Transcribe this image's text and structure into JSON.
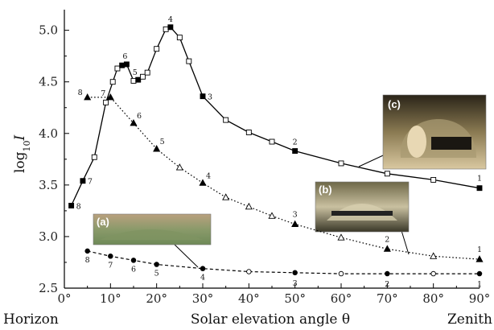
{
  "chart_data": {
    "type": "line",
    "xlabel": "Solar elevation angle θ",
    "ylabel_main": "log",
    "ylabel_sub": "10",
    "ylabel_var": "I",
    "xlim": [
      0,
      90
    ],
    "ylim": [
      2.5,
      5.2
    ],
    "x_ticks": [
      0,
      10,
      20,
      30,
      40,
      50,
      60,
      70,
      80,
      90
    ],
    "x_tick_labels": [
      "0°",
      "10°",
      "20°",
      "30°",
      "40°",
      "50°",
      "60°",
      "70°",
      "80°",
      "90°"
    ],
    "y_ticks": [
      2.5,
      3.0,
      3.5,
      4.0,
      4.5,
      5.0
    ],
    "y_tick_labels": [
      "2.5",
      "3.0",
      "3.5",
      "4.0",
      "4.5",
      "5.0"
    ],
    "x_end_labels": {
      "left": "Horizon",
      "right": "Zenith"
    },
    "grid": false,
    "series": [
      {
        "inset": "c",
        "line_style": "solid",
        "x": [
          1.5,
          4,
          6.5,
          9,
          10.5,
          11.5,
          12.5,
          13.5,
          15,
          16,
          17,
          18,
          20,
          22,
          23,
          25,
          27,
          30,
          35,
          40,
          45,
          50,
          60,
          70,
          80,
          90
        ],
        "y": [
          3.3,
          3.54,
          3.77,
          4.3,
          4.5,
          4.63,
          4.66,
          4.67,
          4.51,
          4.52,
          4.55,
          4.59,
          4.82,
          5.01,
          5.03,
          4.93,
          4.7,
          4.36,
          4.13,
          4.01,
          3.92,
          3.83,
          3.71,
          3.61,
          3.55,
          3.47
        ],
        "filled": [
          true,
          true,
          false,
          false,
          false,
          false,
          true,
          true,
          false,
          true,
          false,
          false,
          false,
          false,
          true,
          false,
          false,
          true,
          false,
          false,
          false,
          true,
          false,
          false,
          false,
          true
        ],
        "point_labels": [
          {
            "text": "8",
            "x": 1.5,
            "y": 3.3
          },
          {
            "text": "7",
            "x": 4,
            "y": 3.54
          },
          {
            "text": "6",
            "x": 13.5,
            "y": 4.67
          },
          {
            "text": "5",
            "x": 16,
            "y": 4.52
          },
          {
            "text": "4",
            "x": 23,
            "y": 5.03
          },
          {
            "text": "3",
            "x": 30,
            "y": 4.36
          },
          {
            "text": "2",
            "x": 50,
            "y": 3.83
          },
          {
            "text": "1",
            "x": 90,
            "y": 3.47
          }
        ]
      },
      {
        "inset": "b",
        "line_style": "dotted",
        "x": [
          5,
          10,
          15,
          20,
          25,
          30,
          35,
          40,
          45,
          50,
          60,
          70,
          80,
          90
        ],
        "y": [
          4.35,
          4.35,
          4.1,
          3.85,
          3.67,
          3.52,
          3.38,
          3.29,
          3.2,
          3.12,
          2.99,
          2.88,
          2.81,
          2.78
        ],
        "filled": [
          true,
          true,
          true,
          true,
          false,
          true,
          false,
          false,
          false,
          true,
          false,
          true,
          false,
          true
        ],
        "point_labels": [
          {
            "text": "8",
            "x": 5,
            "y": 4.35
          },
          {
            "text": "7",
            "x": 10,
            "y": 4.35
          },
          {
            "text": "6",
            "x": 15,
            "y": 4.1
          },
          {
            "text": "5",
            "x": 20,
            "y": 3.85
          },
          {
            "text": "4",
            "x": 30,
            "y": 3.52
          },
          {
            "text": "3",
            "x": 50,
            "y": 3.12
          },
          {
            "text": "2",
            "x": 70,
            "y": 2.88
          },
          {
            "text": "1",
            "x": 90,
            "y": 2.78
          }
        ]
      },
      {
        "inset": "a",
        "line_style": "dashed",
        "x": [
          5,
          10,
          15,
          20,
          30,
          40,
          50,
          60,
          70,
          80,
          90
        ],
        "y": [
          2.86,
          2.81,
          2.77,
          2.73,
          2.69,
          2.66,
          2.65,
          2.64,
          2.64,
          2.64,
          2.64
        ],
        "filled": [
          true,
          true,
          true,
          true,
          true,
          false,
          true,
          false,
          true,
          false,
          true
        ],
        "point_labels": [
          {
            "text": "8",
            "x": 5,
            "y": 2.86
          },
          {
            "text": "7",
            "x": 10,
            "y": 2.81
          },
          {
            "text": "6",
            "x": 15,
            "y": 2.77
          },
          {
            "text": "5",
            "x": 20,
            "y": 2.73
          },
          {
            "text": "4",
            "x": 30,
            "y": 2.69
          },
          {
            "text": "3",
            "x": 50,
            "y": 2.65
          },
          {
            "text": "2",
            "x": 70,
            "y": 2.64
          },
          {
            "text": "1",
            "x": 90,
            "y": 2.64
          }
        ]
      }
    ],
    "insets": [
      {
        "label": "(a)",
        "colors": [
          "#b9a07e",
          "#8a9a6a",
          "#6f8a58"
        ]
      },
      {
        "label": "(b)",
        "colors": [
          "#6e6848",
          "#c9c0a0",
          "#3a3828"
        ]
      },
      {
        "label": "(c)",
        "colors": [
          "#2a2418",
          "#8a7a52",
          "#d9c8a0"
        ]
      }
    ]
  }
}
